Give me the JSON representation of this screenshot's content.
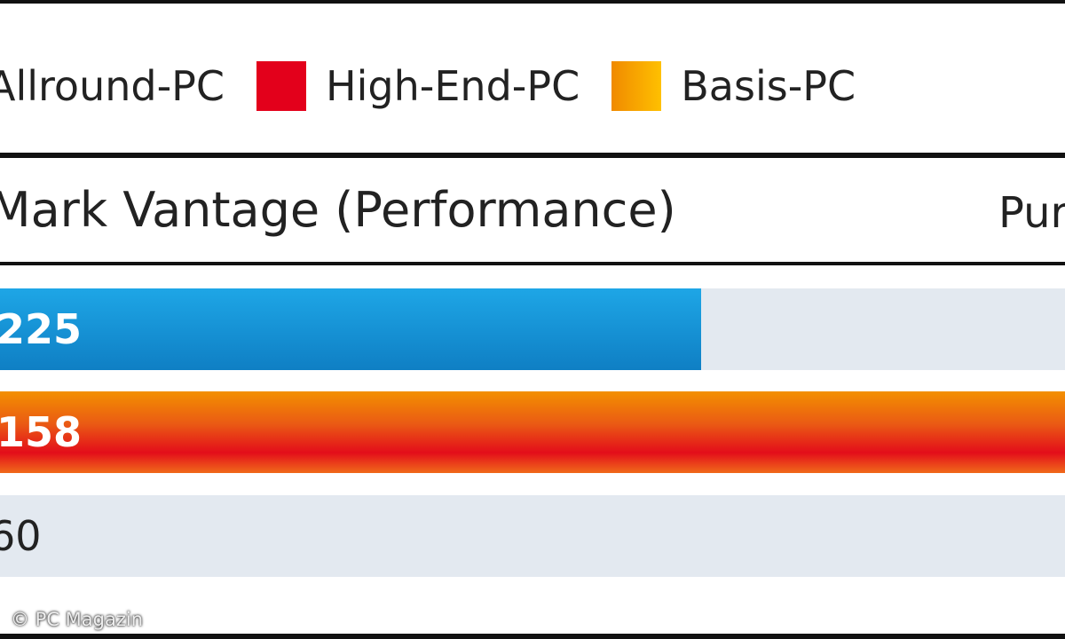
{
  "chart_data": {
    "type": "bar",
    "orientation": "horizontal",
    "title": "Mark Vantage (Performance)",
    "right_title": "Pur",
    "legend": [
      {
        "name": "Allround-PC",
        "color": "#1a8fd4"
      },
      {
        "name": "High-End-PC",
        "color": "#e3001b"
      },
      {
        "name": "Basis-PC",
        "color": "#f5a300"
      }
    ],
    "legend_placement": "top",
    "bars": [
      {
        "label": "225",
        "series": "Allround-PC",
        "fill_fraction_visible": 0.66,
        "label_color": "#ffffff"
      },
      {
        "label": "158",
        "series": "High-End-PC",
        "fill_fraction_visible": 1.0,
        "label_color": "#ffffff"
      },
      {
        "label": "60",
        "series": "Basis-PC",
        "fill_fraction_visible": 0.0,
        "label_color": "#222222"
      }
    ],
    "track_color": "#e3e9f0"
  },
  "copyright": "© PC Magazin"
}
